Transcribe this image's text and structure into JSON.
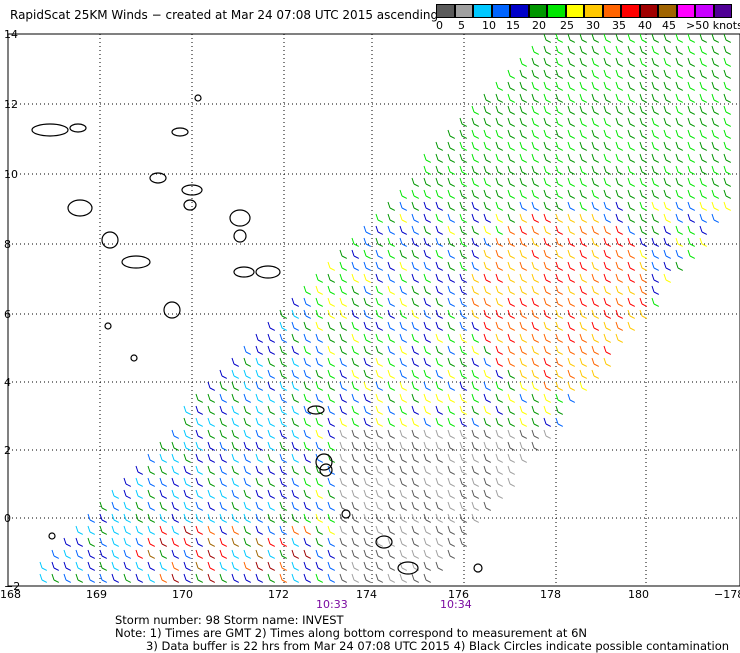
{
  "title": "RapidScat 25KM Winds − created at Mar 24 07:08 UTC 2015 ascending",
  "legend": {
    "colors": [
      "#5a5a5a",
      "#a0a0a0",
      "#00c8ff",
      "#0064ff",
      "#0000c8",
      "#009600",
      "#00e600",
      "#ffff00",
      "#ffc800",
      "#ff6400",
      "#ff0000",
      "#a00000",
      "#a06400",
      "#ff00ff",
      "#c800ff",
      "#500096"
    ],
    "labels": [
      "0",
      "5",
      "10",
      "15",
      "20",
      "25",
      "30",
      "35",
      "40",
      "45",
      ">50 knots"
    ]
  },
  "axes": {
    "lon_labels": [
      "168",
      "169",
      "170",
      "172",
      "174",
      "176",
      "178",
      "180",
      "−178"
    ],
    "lat_labels": [
      "14",
      "12",
      "10",
      "8",
      "6",
      "4",
      "2",
      "0",
      "−2"
    ]
  },
  "times": [
    "10:33",
    "10:34"
  ],
  "notes": {
    "line1": "Storm number: 98     Storm name: INVEST",
    "line2": "Note: 1) Times are GMT  2) Times along bottom correspond to measurement at 6N",
    "line3": "3) Data buffer is 22 hrs from Mar 24 07:08 UTC 2015  4) Black Circles indicate possible contamination"
  }
}
